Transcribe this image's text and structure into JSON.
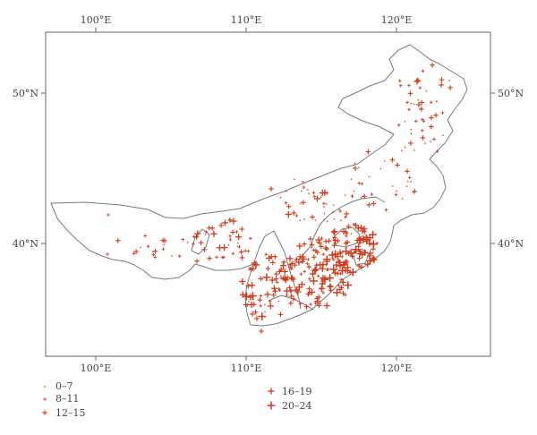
{
  "map": {
    "axis_labels": {
      "top": [
        "100°E",
        "110°E",
        "120°E"
      ],
      "bottom": [
        "100°E",
        "110°E",
        "120°E"
      ],
      "left": [
        "50°N",
        "40°N"
      ],
      "right": [
        "50°N",
        "40°N"
      ]
    },
    "marker_color": "#d03a1b",
    "outline_color": "#7a7a7a"
  },
  "legend": {
    "items": [
      {
        "label": "0–7",
        "size": 1
      },
      {
        "label": "8–11",
        "size": 2
      },
      {
        "label": "12–15",
        "size": 3
      },
      {
        "label": "16–19",
        "size": 4
      },
      {
        "label": "20–24",
        "size": 5
      }
    ]
  }
}
